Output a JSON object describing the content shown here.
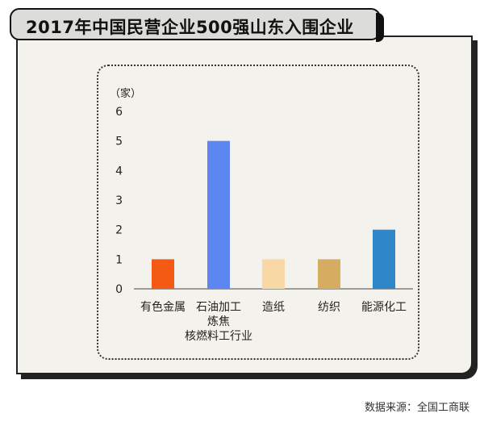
{
  "title": "2017年中国民营企业500强山东入围企业",
  "source": "数据来源：全国工商联",
  "chart_data": {
    "type": "bar",
    "ylabel": "（家）",
    "ylim": [
      0,
      6
    ],
    "yticks": [
      "0",
      "1",
      "2",
      "3",
      "4",
      "5",
      "6"
    ],
    "categories": [
      [
        "有色金属"
      ],
      [
        "石油加工",
        "炼焦",
        "核燃料工行业"
      ],
      [
        "造纸"
      ],
      [
        "纺织"
      ],
      [
        "能源化工"
      ]
    ],
    "values": [
      1,
      5,
      1,
      1,
      2
    ],
    "colors": [
      "#f55a14",
      "#5c86f2",
      "#f8d9a6",
      "#d6ac60",
      "#2f86c8"
    ],
    "grid": false
  }
}
